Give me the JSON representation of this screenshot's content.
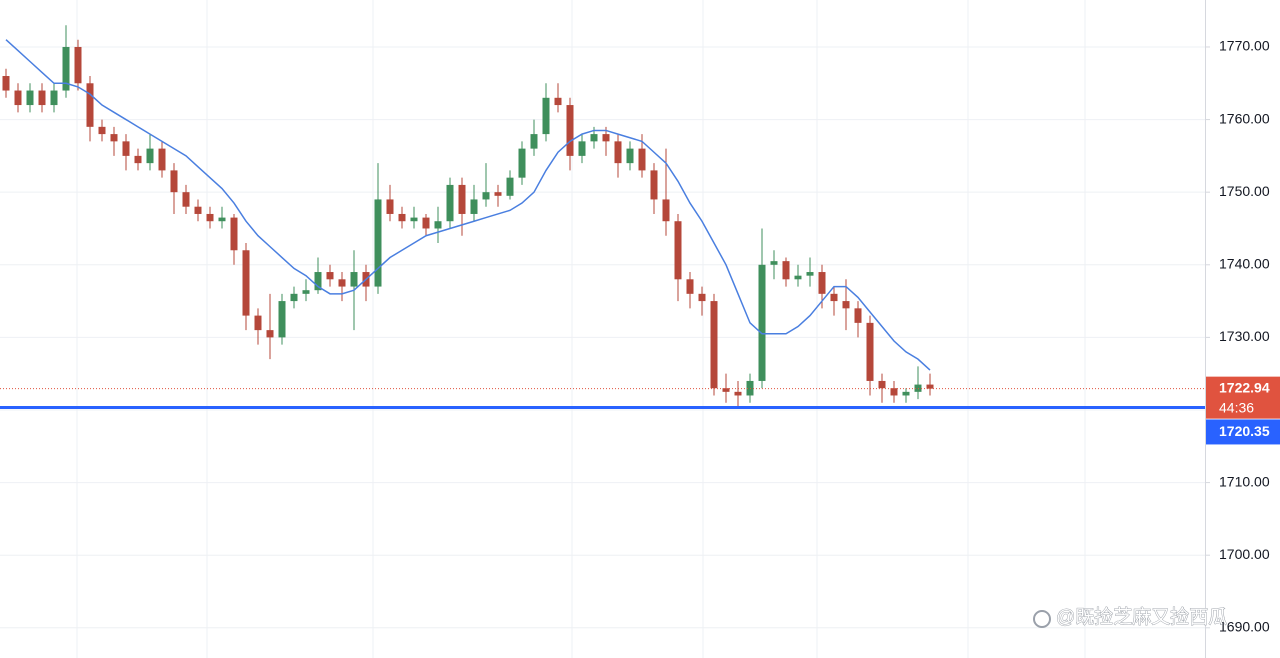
{
  "chart_data": {
    "type": "candlestick",
    "ylim": [
      1685.84,
      1776.47
    ],
    "yticks": [
      {
        "value": 1690,
        "label": "1690.00"
      },
      {
        "value": 1700,
        "label": "1700.00"
      },
      {
        "value": 1710,
        "label": "1710.00"
      },
      {
        "value": 1720,
        "label": "1720.00"
      },
      {
        "value": 1730,
        "label": "1730.00"
      },
      {
        "value": 1740,
        "label": "1740.00"
      },
      {
        "value": 1750,
        "label": "1750.00"
      },
      {
        "value": 1760,
        "label": "1760.00"
      },
      {
        "value": 1770,
        "label": "1770.00"
      }
    ],
    "grid": true,
    "up_color": "#3f8f5c",
    "down_color": "#b5473a",
    "open": [
      1766,
      1764,
      1762,
      1764,
      1762,
      1764,
      1770,
      1765,
      1759,
      1758,
      1757,
      1755,
      1754,
      1756,
      1753,
      1750,
      1748,
      1747,
      1746,
      1746.5,
      1742,
      1733,
      1731,
      1730,
      1735,
      1736,
      1736.5,
      1739,
      1738,
      1737,
      1739,
      1737,
      1749,
      1747,
      1746,
      1746.5,
      1745,
      1746,
      1751,
      1747,
      1749,
      1750,
      1749.5,
      1752,
      1756,
      1758,
      1763,
      1762,
      1755,
      1757,
      1758,
      1757,
      1754,
      1756,
      1753,
      1749,
      1746,
      1738,
      1736,
      1735,
      1723,
      1722.5,
      1722,
      1724,
      1740,
      1740.5,
      1738,
      1738.5,
      1739,
      1736,
      1735,
      1734,
      1732,
      1724,
      1723,
      1722,
      1722.5,
      1723.5
    ],
    "high": [
      1767,
      1765,
      1765,
      1765,
      1765,
      1773,
      1771,
      1766,
      1760,
      1759,
      1758,
      1756,
      1758,
      1757,
      1754,
      1751,
      1749,
      1748,
      1748,
      1747,
      1743,
      1734,
      1736,
      1736,
      1737,
      1738,
      1741,
      1740,
      1739,
      1742,
      1740,
      1754,
      1751,
      1748,
      1748,
      1747,
      1748,
      1752,
      1752,
      1751,
      1754,
      1751,
      1753,
      1757,
      1760,
      1765,
      1765,
      1763,
      1758,
      1759,
      1759,
      1758,
      1757,
      1758,
      1754,
      1756,
      1747,
      1739,
      1737,
      1736,
      1725,
      1724,
      1725,
      1745,
      1742,
      1741,
      1740,
      1741,
      1740,
      1737,
      1738,
      1735,
      1733,
      1725,
      1724,
      1723,
      1726,
      1725
    ],
    "low": [
      1763,
      1761,
      1761,
      1761,
      1761,
      1763,
      1764,
      1757,
      1757,
      1755,
      1753,
      1753,
      1753,
      1752,
      1747,
      1747,
      1746,
      1745,
      1745,
      1740,
      1731,
      1729,
      1727,
      1729,
      1734,
      1735,
      1736,
      1737,
      1735,
      1731,
      1735,
      1736,
      1746,
      1745,
      1745,
      1744,
      1743,
      1745,
      1744,
      1746,
      1748,
      1748,
      1749,
      1751,
      1755,
      1757,
      1761,
      1753,
      1754,
      1756,
      1755,
      1752,
      1753,
      1752,
      1747,
      1744,
      1735,
      1734,
      1733,
      1722,
      1721,
      1720.5,
      1721,
      1723,
      1738,
      1737,
      1737,
      1737,
      1734,
      1733,
      1731,
      1730,
      1722,
      1721,
      1721,
      1721,
      1721.5,
      1722
    ],
    "close": [
      1764,
      1762,
      1764,
      1762,
      1764,
      1770,
      1765,
      1759,
      1758,
      1757,
      1755,
      1754,
      1756,
      1753,
      1750,
      1748,
      1747,
      1746,
      1746.5,
      1742,
      1733,
      1731,
      1730,
      1735,
      1736,
      1736.5,
      1739,
      1738,
      1737,
      1739,
      1737,
      1749,
      1747,
      1746,
      1746.5,
      1745,
      1746,
      1751,
      1747,
      1749,
      1750,
      1749.5,
      1752,
      1756,
      1758,
      1763,
      1762,
      1755,
      1757,
      1758,
      1757,
      1754,
      1756,
      1753,
      1749,
      1746,
      1738,
      1736,
      1735,
      1723,
      1722.5,
      1722,
      1724,
      1740,
      1740.5,
      1738,
      1738.5,
      1739,
      1736,
      1735,
      1734,
      1732,
      1724,
      1723,
      1722,
      1722.5,
      1723.5,
      1722.94
    ],
    "ma": {
      "color": "#4a7fe0",
      "values": [
        1771,
        1769.5,
        1768,
        1766.5,
        1765,
        1765,
        1764.5,
        1763.5,
        1762,
        1761,
        1760,
        1759,
        1758,
        1757,
        1756,
        1755,
        1753.5,
        1752,
        1750.5,
        1748.5,
        1746,
        1744,
        1742.5,
        1741,
        1739.5,
        1738.5,
        1737,
        1736,
        1736,
        1736.5,
        1738,
        1739.5,
        1741,
        1742,
        1743,
        1744,
        1744.5,
        1745,
        1745.5,
        1746,
        1746.5,
        1747,
        1747.5,
        1748.5,
        1750,
        1753,
        1755.5,
        1757,
        1758,
        1758.5,
        1758.5,
        1758,
        1757.5,
        1757,
        1755.5,
        1754,
        1751.5,
        1748.5,
        1746,
        1743,
        1740,
        1736,
        1732,
        1730.5,
        1730.5,
        1730.5,
        1731.5,
        1733,
        1735,
        1737,
        1737,
        1735.5,
        1733.5,
        1731.5,
        1729.5,
        1728,
        1727,
        1725.5
      ]
    },
    "last_price": {
      "value": 1722.94,
      "countdown": "44:36",
      "color": "#e0533f"
    },
    "level": {
      "value": 1720.35,
      "color": "#2962ff"
    },
    "watermark": "@既捡芝麻又捡西瓜"
  }
}
